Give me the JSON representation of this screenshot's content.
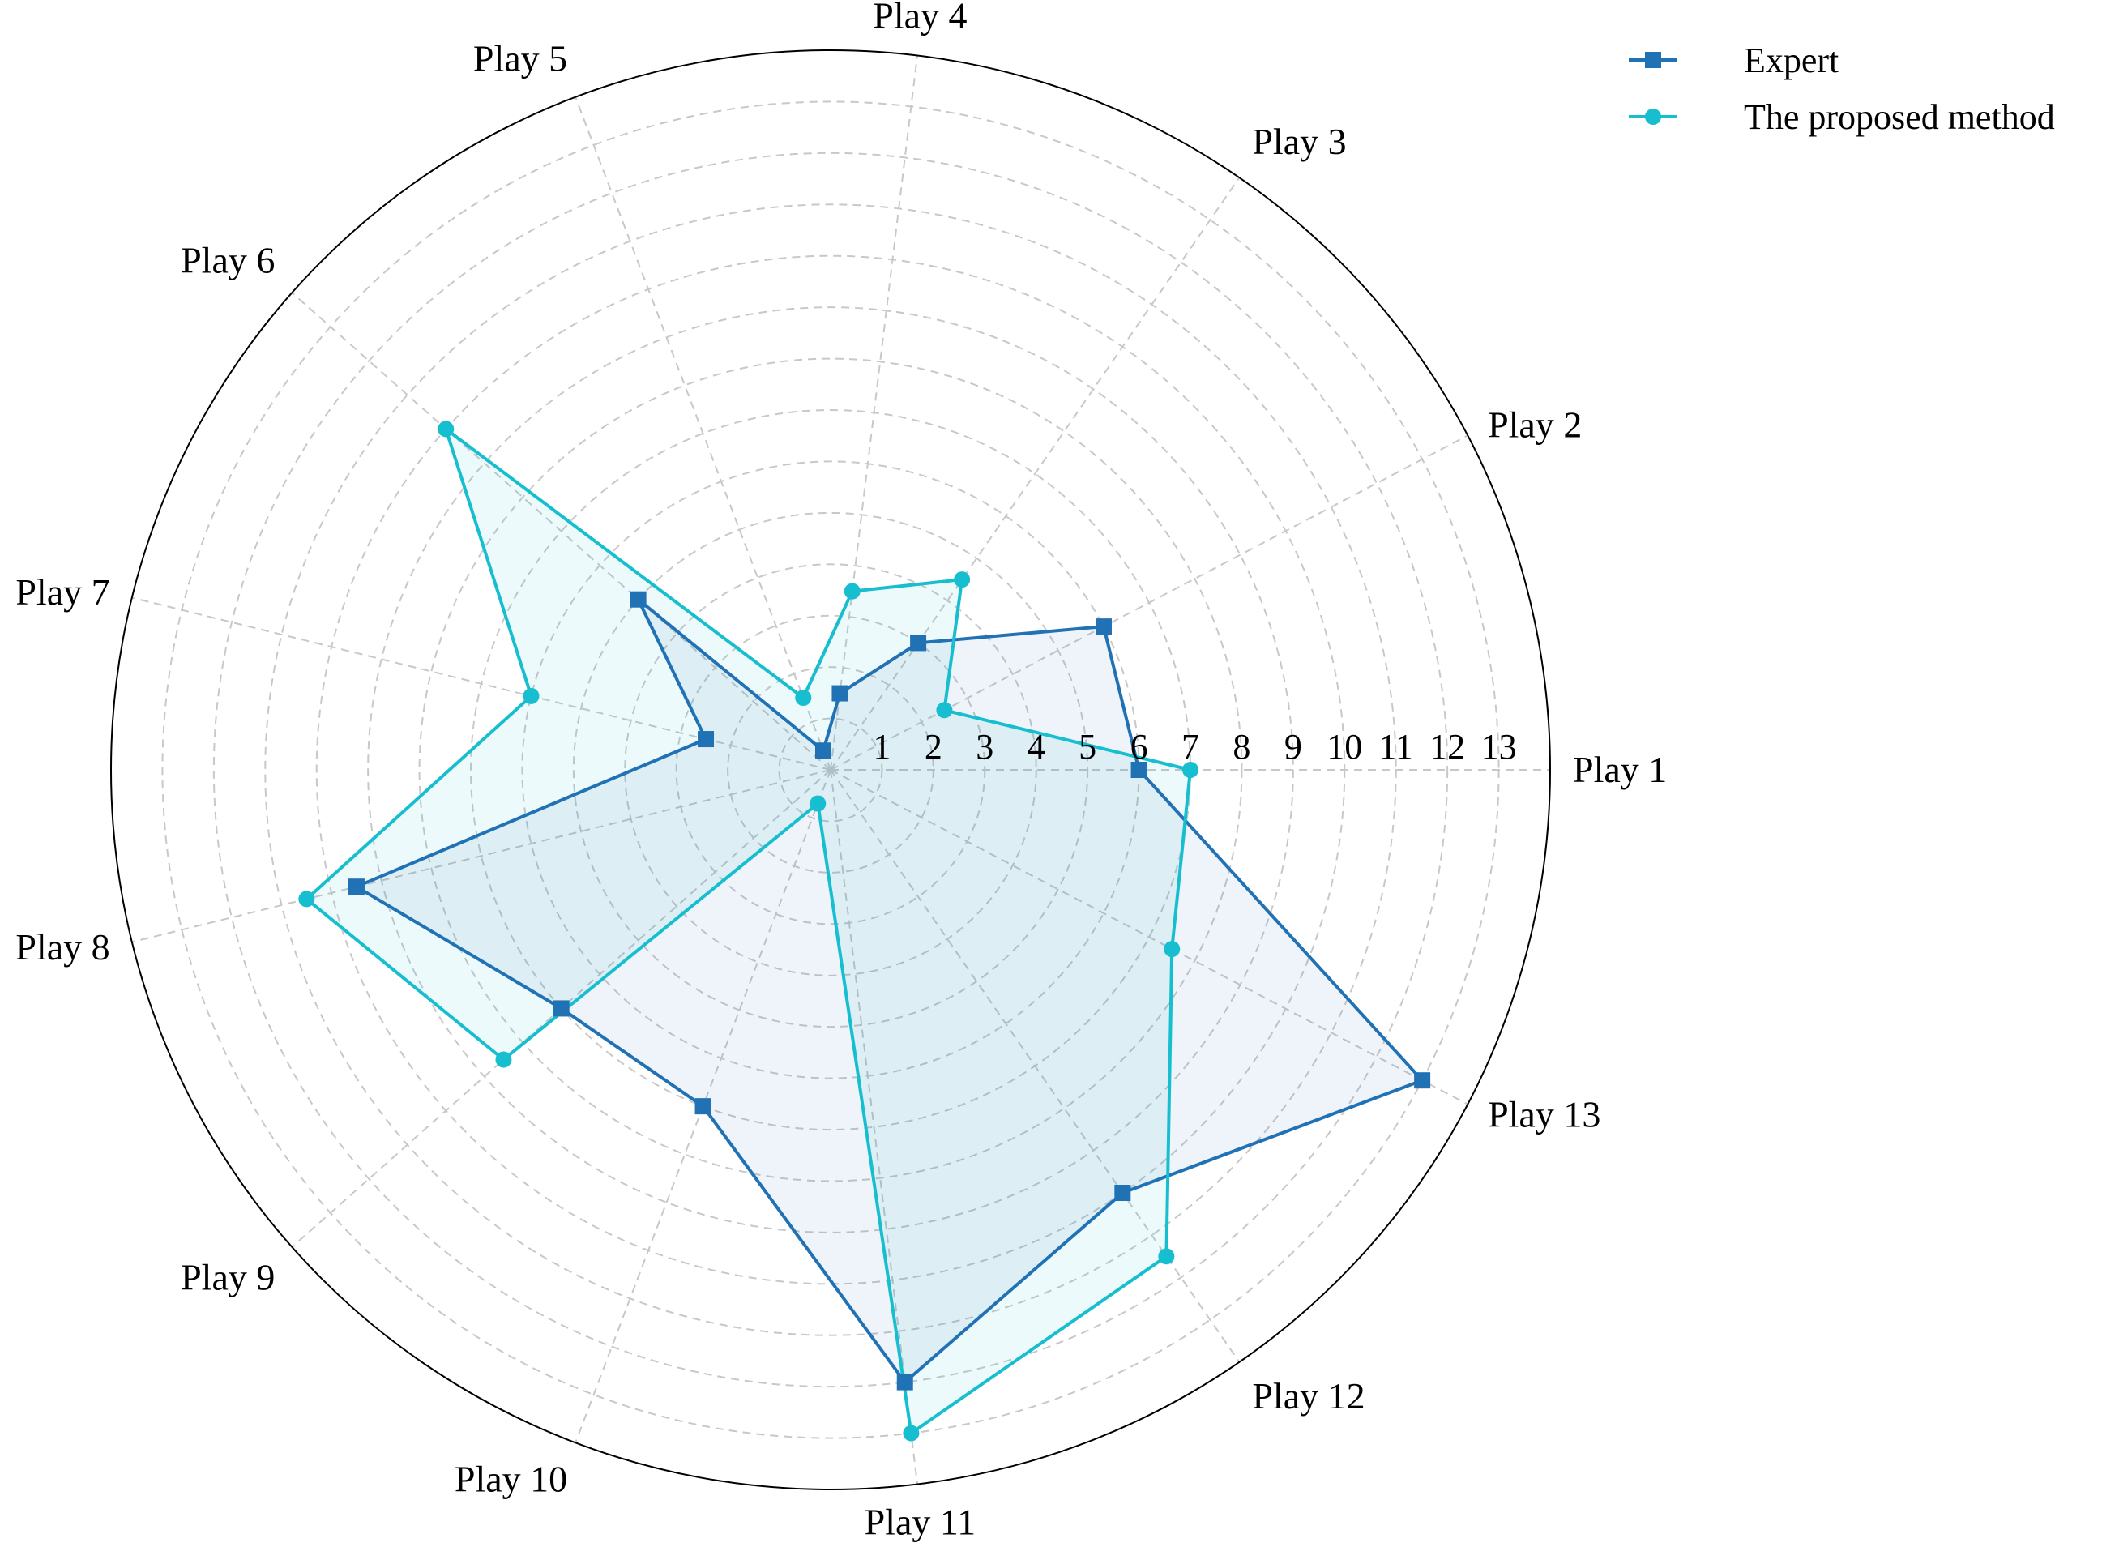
{
  "chart_data": {
    "type": "radar",
    "axes": [
      "Play 1",
      "Play 2",
      "Play 3",
      "Play 4",
      "Play 5",
      "Play 6",
      "Play 7",
      "Play 8",
      "Play 9",
      "Play 10",
      "Play 11",
      "Play 12",
      "Play 13"
    ],
    "radial_ticks": [
      "1",
      "2",
      "3",
      "4",
      "5",
      "6",
      "7",
      "8",
      "9",
      "10",
      "11",
      "12",
      "13"
    ],
    "rlim": [
      0,
      14
    ],
    "grid": true,
    "legend_position": "top-right",
    "series": [
      {
        "name": "Expert",
        "color": "#2171b5",
        "marker": "square",
        "values": [
          6,
          6,
          3,
          1.5,
          0.4,
          5,
          2.5,
          9.5,
          7,
          7,
          12,
          10,
          13
        ]
      },
      {
        "name": "The proposed method",
        "color": "#17becf",
        "marker": "circle",
        "values": [
          7,
          2.5,
          4.5,
          3.5,
          1.5,
          10,
          6,
          10.5,
          8.5,
          0.7,
          13,
          11.5,
          7.5
        ]
      }
    ]
  }
}
